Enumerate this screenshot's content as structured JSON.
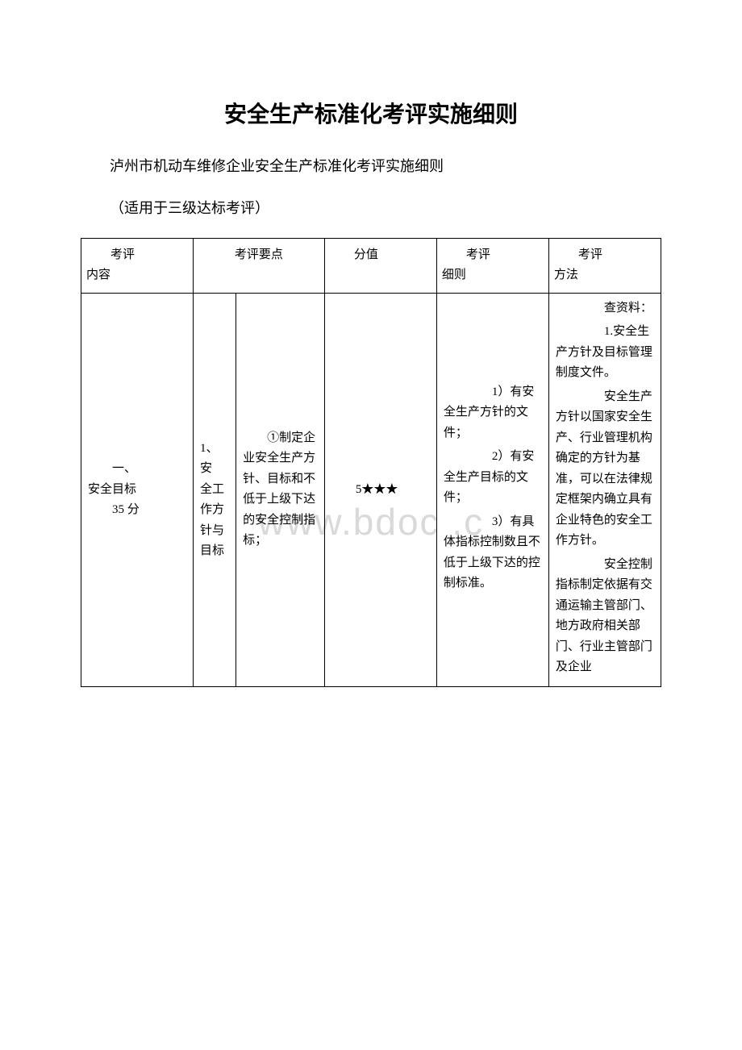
{
  "title": "安全生产标准化考评实施细则",
  "subtitle": "泸州市机动车维修企业安全生产标准化考评实施细则",
  "note": "（适用于三级达标考评）",
  "watermark": "www.bdoc .c",
  "table": {
    "headers": {
      "col1_line1": "　　考评",
      "col1_line2": "内容",
      "col2": "考评要点",
      "col4": "分值",
      "col5_line1": "　　考评",
      "col5_line2": "细则",
      "col6_line1": "　　考评",
      "col6_line2": "方法"
    },
    "row": {
      "col1_line1": "　　一、",
      "col1_line2": "安全目标",
      "col1_line3": "　　35 分",
      "col2_line1": "　　1、安",
      "col2_line2": "全工作方",
      "col2_line3": "针与目标",
      "col3": "　　①制定企业安全生产方针、目标和不低于上级下达的安全控制指标；",
      "col4": "　　5★★★",
      "col5_p1": "　　1）有安全生产方针的文件；",
      "col5_p2": "　　2）有安全生产目标的文件；",
      "col5_p3": "　　3）有具体指标控制数且不低于上级下达的控制标准。",
      "col6_p1": "　　查资料：",
      "col6_p2": "　　1.安全生产方针及目标管理制度文件。",
      "col6_p3": "　　安全生产方针以国家安全生产、行业管理机构确定的方针为基准，可以在法律规定框架内确立具有企业特色的安全工作方针。",
      "col6_p4": "　　安全控制指标制定依据有交通运输主管部门、地方政府相关部门、行业主管部门及企业"
    }
  },
  "colors": {
    "text": "#000000",
    "border": "#000000",
    "background": "#ffffff",
    "watermark": "#d9d9d9"
  },
  "fonts": {
    "title_size": 28,
    "subtitle_size": 18,
    "table_size": 15,
    "watermark_size": 46
  }
}
